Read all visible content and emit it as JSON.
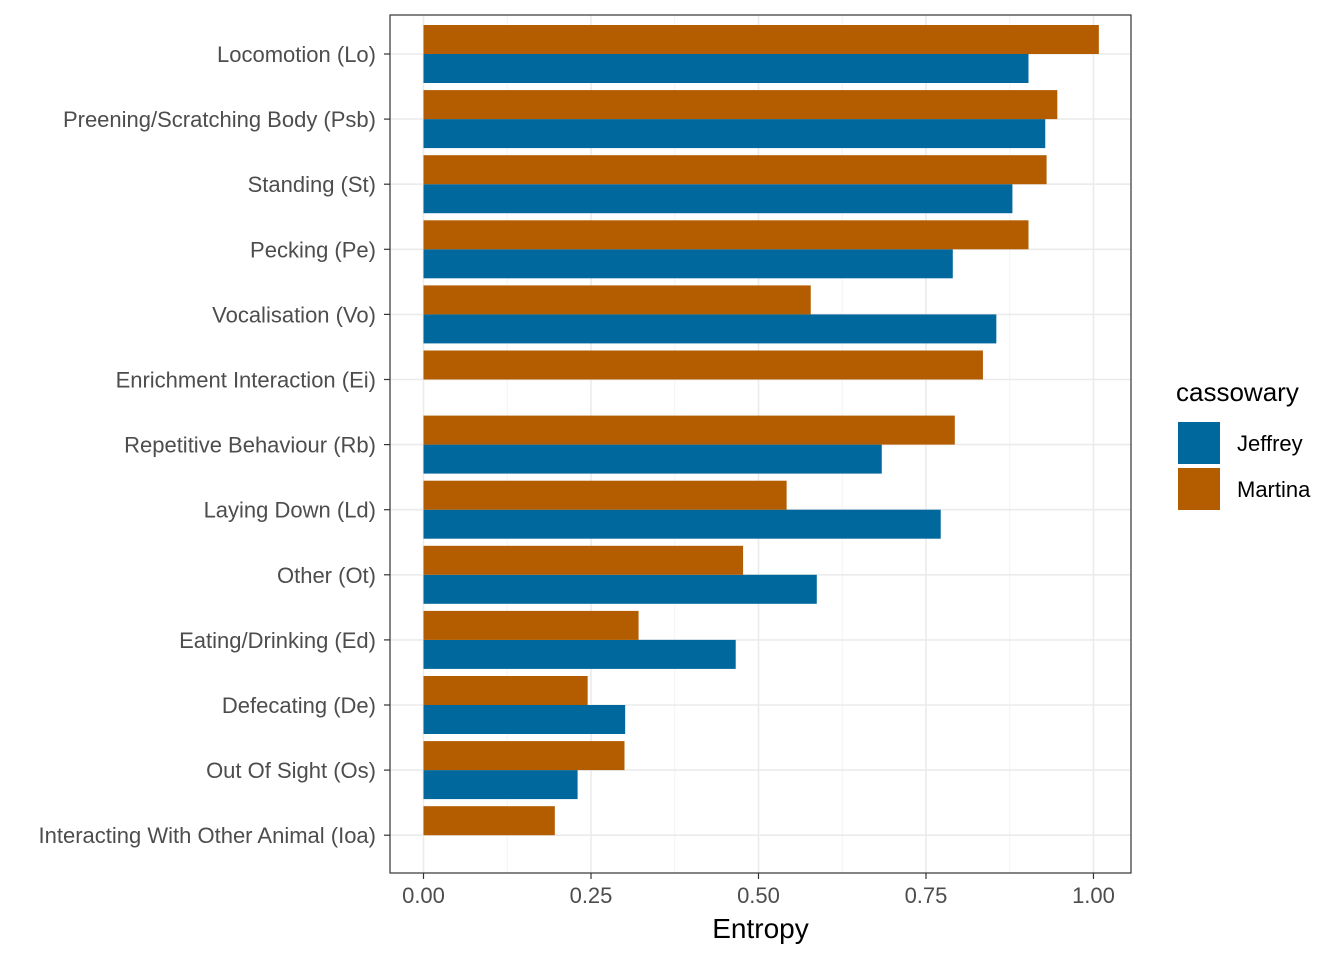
{
  "chart_data": {
    "type": "bar",
    "orientation": "horizontal",
    "xlabel": "Entropy",
    "ylabel": "",
    "xlim": [
      -0.05,
      1.056
    ],
    "xticks": [
      0.0,
      0.25,
      0.5,
      0.75,
      1.0
    ],
    "xtick_labels": [
      "0.00",
      "0.25",
      "0.50",
      "0.75",
      "1.00"
    ],
    "grid": true,
    "legend": {
      "title": "cassowary",
      "position": "right"
    },
    "categories": [
      "Locomotion (Lo)",
      "Preening/Scratching Body (Psb)",
      "Standing (St)",
      "Pecking (Pe)",
      "Vocalisation (Vo)",
      "Enrichment Interaction (Ei)",
      "Repetitive Behaviour (Rb)",
      "Laying Down (Ld)",
      "Other (Ot)",
      "Eating/Drinking (Ed)",
      "Defecating (De)",
      "Out Of Sight (Os)",
      "Interacting With Other Animal (Ioa)"
    ],
    "series": [
      {
        "name": "Jeffrey",
        "color": "#00689D",
        "values": [
          0.903,
          0.928,
          0.879,
          0.79,
          0.855,
          null,
          0.684,
          0.772,
          0.587,
          0.466,
          0.301,
          0.23,
          null
        ]
      },
      {
        "name": "Martina",
        "color": "#B35C00",
        "values": [
          1.008,
          0.946,
          0.93,
          0.903,
          0.578,
          0.835,
          0.793,
          0.542,
          0.477,
          0.321,
          0.245,
          0.3,
          0.196
        ]
      }
    ]
  }
}
